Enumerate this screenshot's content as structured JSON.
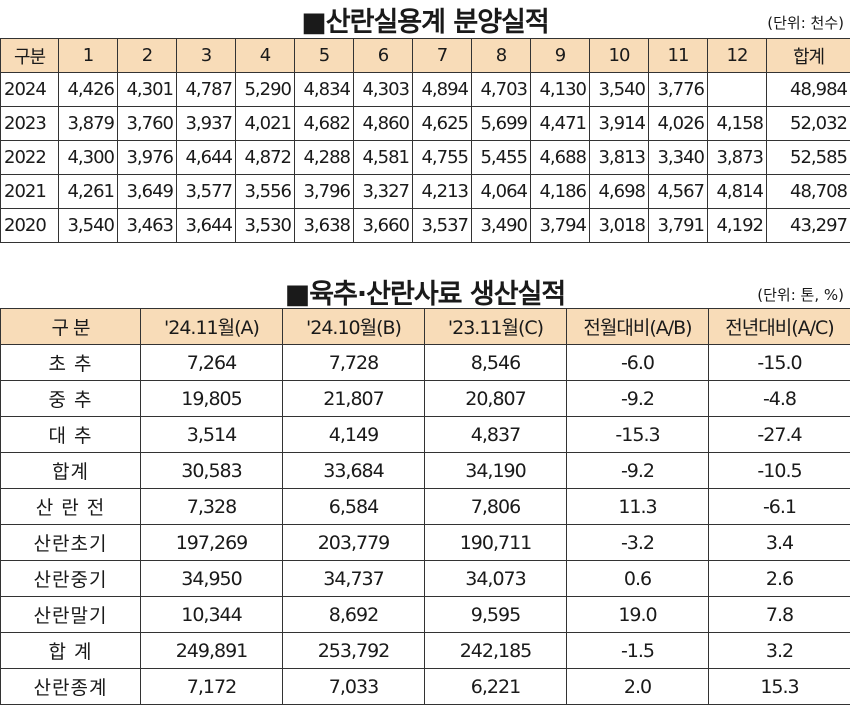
{
  "section1": {
    "title": "■산란실용계 분양실적",
    "unit": "(단위: 천수)",
    "headers": [
      "구분",
      "1",
      "2",
      "3",
      "4",
      "5",
      "6",
      "7",
      "8",
      "9",
      "10",
      "11",
      "12",
      "합계"
    ],
    "rows": [
      [
        "2024",
        "4,426",
        "4,301",
        "4,787",
        "5,290",
        "4,834",
        "4,303",
        "4,894",
        "4,703",
        "4,130",
        "3,540",
        "3,776",
        "",
        "48,984"
      ],
      [
        "2023",
        "3,879",
        "3,760",
        "3,937",
        "4,021",
        "4,682",
        "4,860",
        "4,625",
        "5,699",
        "4,471",
        "3,914",
        "4,026",
        "4,158",
        "52,032"
      ],
      [
        "2022",
        "4,300",
        "3,976",
        "4,644",
        "4,872",
        "4,288",
        "4,581",
        "4,755",
        "5,455",
        "4,688",
        "3,813",
        "3,340",
        "3,873",
        "52,585"
      ],
      [
        "2021",
        "4,261",
        "3,649",
        "3,577",
        "3,556",
        "3,796",
        "3,327",
        "4,213",
        "4,064",
        "4,186",
        "4,698",
        "4,567",
        "4,814",
        "48,708"
      ],
      [
        "2020",
        "3,540",
        "3,463",
        "3,644",
        "3,530",
        "3,638",
        "3,660",
        "3,537",
        "3,490",
        "3,794",
        "3,018",
        "3,791",
        "4,192",
        "43,297"
      ]
    ]
  },
  "section2": {
    "title": "■육추·산란사료 생산실적",
    "unit": "(단위: 톤, %)",
    "headers": [
      "구 분",
      "'24.11월(A)",
      "'24.10월(B)",
      "'23.11월(C)",
      "전월대비(A/B)",
      "전년대비(A/C)"
    ],
    "rows": [
      [
        "초 추",
        "7,264",
        "7,728",
        "8,546",
        "-6.0",
        "-15.0"
      ],
      [
        "중 추",
        "19,805",
        "21,807",
        "20,807",
        "-9.2",
        "-4.8"
      ],
      [
        "대 추",
        "3,514",
        "4,149",
        "4,837",
        "-15.3",
        "-27.4"
      ],
      [
        "합계",
        "30,583",
        "33,684",
        "34,190",
        "-9.2",
        "-10.5"
      ],
      [
        "산 란 전",
        "7,328",
        "6,584",
        "7,806",
        "11.3",
        "-6.1"
      ],
      [
        "산란초기",
        "197,269",
        "203,779",
        "190,711",
        "-3.2",
        "3.4"
      ],
      [
        "산란중기",
        "34,950",
        "34,737",
        "34,073",
        "0.6",
        "2.6"
      ],
      [
        "산란말기",
        "10,344",
        "8,692",
        "9,595",
        "19.0",
        "7.8"
      ],
      [
        "합 계",
        "249,891",
        "253,792",
        "242,185",
        "-1.5",
        "3.2"
      ],
      [
        "산란종계",
        "7,172",
        "7,033",
        "6,221",
        "2.0",
        "15.3"
      ]
    ]
  }
}
